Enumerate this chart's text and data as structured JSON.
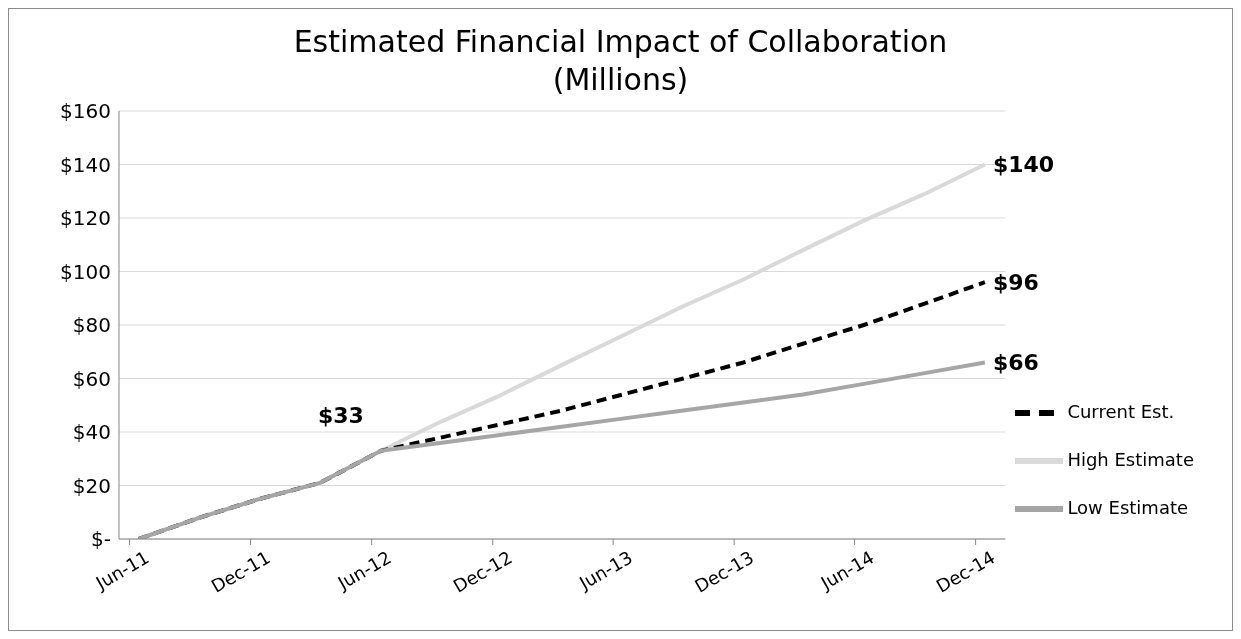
{
  "chart_data": {
    "type": "line",
    "title": "Estimated Financial Impact of Collaboration\n(Millions)",
    "x": [
      "2011-06-15",
      "2011-09-15",
      "2011-12-15",
      "2012-03-15",
      "2012-06-15",
      "2012-09-15",
      "2012-12-15",
      "2013-03-15",
      "2013-06-15",
      "2013-09-15",
      "2013-12-15",
      "2014-03-15",
      "2014-06-15",
      "2014-09-15",
      "2014-12-15"
    ],
    "series": [
      {
        "name": "High Estimate",
        "color": "#d9d9d9",
        "line_style": "solid",
        "values": [
          0,
          8,
          15,
          21,
          33,
          44,
          54,
          65,
          76,
          87,
          97,
          108,
          119,
          129,
          140
        ]
      },
      {
        "name": "Current Est.",
        "color": "#000000",
        "line_style": "dashed",
        "values": [
          0,
          8,
          15,
          21,
          33,
          38,
          43,
          48,
          54,
          60,
          66,
          73,
          80,
          88,
          96
        ]
      },
      {
        "name": "Low Estimate",
        "color": "#a6a6a6",
        "line_style": "solid",
        "values": [
          0,
          8,
          15,
          21,
          33,
          36,
          39,
          42,
          45,
          48,
          51,
          54,
          58,
          62,
          66
        ]
      }
    ],
    "annotations": [
      {
        "text": "$33",
        "x": "2012-06-15",
        "y": 33
      },
      {
        "text": "$140",
        "x": "2014-12-15",
        "y": 140
      },
      {
        "text": "$96",
        "x": "2014-12-15",
        "y": 96
      },
      {
        "text": "$66",
        "x": "2014-12-15",
        "y": 66
      }
    ],
    "xlim": [
      "2011-05-16",
      "2015-01-15"
    ],
    "xticks": [
      {
        "value": "2011-06-01",
        "label": "Jun-11"
      },
      {
        "value": "2011-12-01",
        "label": "Dec-11"
      },
      {
        "value": "2012-06-01",
        "label": "Jun-12"
      },
      {
        "value": "2012-12-01",
        "label": "Dec-12"
      },
      {
        "value": "2013-06-01",
        "label": "Jun-13"
      },
      {
        "value": "2013-12-01",
        "label": "Dec-13"
      },
      {
        "value": "2014-06-01",
        "label": "Jun-14"
      },
      {
        "value": "2014-12-01",
        "label": "Dec-14"
      }
    ],
    "ylim": [
      0,
      160
    ],
    "yticks": [
      {
        "value": 0,
        "label": "$-"
      },
      {
        "value": 20,
        "label": "$20"
      },
      {
        "value": 40,
        "label": "$40"
      },
      {
        "value": 60,
        "label": "$60"
      },
      {
        "value": 80,
        "label": "$80"
      },
      {
        "value": 100,
        "label": "$100"
      },
      {
        "value": 120,
        "label": "$120"
      },
      {
        "value": 140,
        "label": "$140"
      },
      {
        "value": 160,
        "label": "$160"
      }
    ],
    "grid": "y",
    "legend": "right",
    "marker": "none"
  }
}
